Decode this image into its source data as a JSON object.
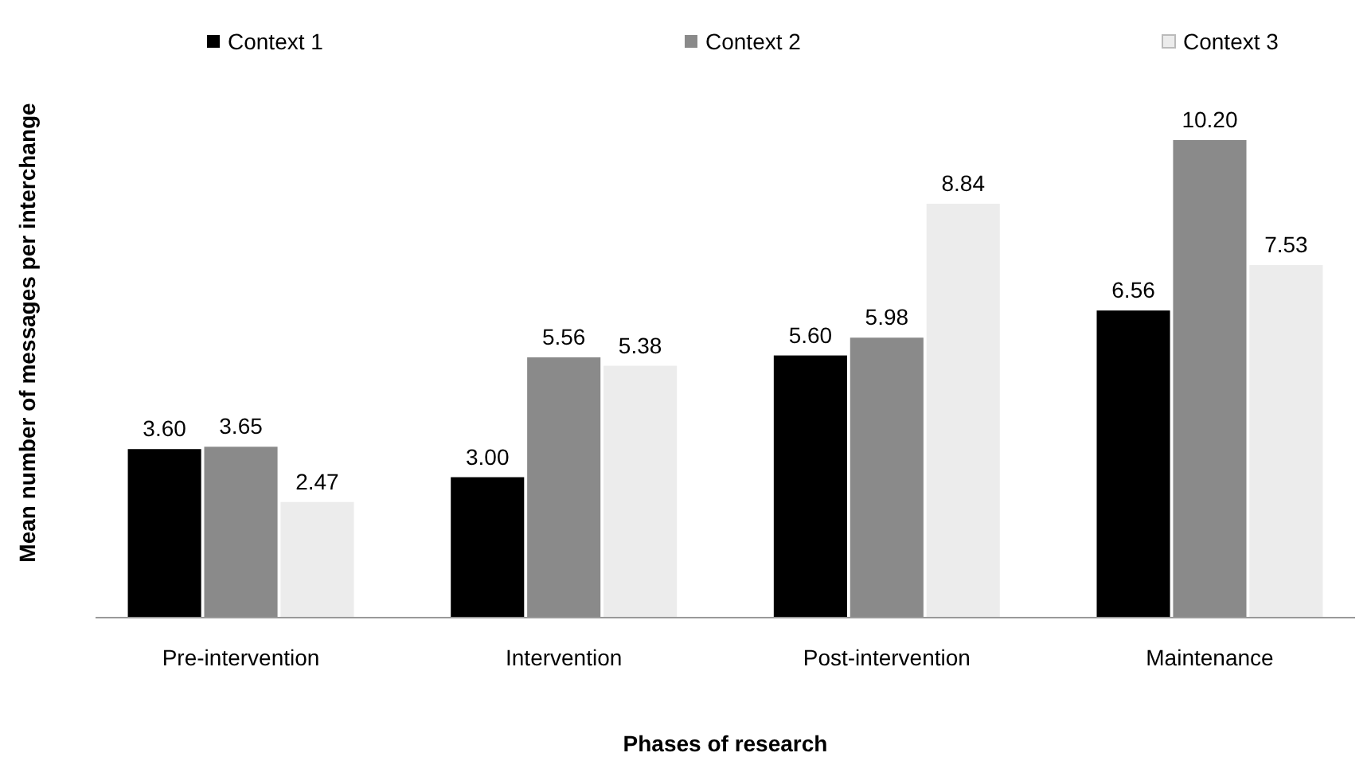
{
  "chart_data": {
    "type": "bar",
    "xlabel": "Phases of research",
    "ylabel": "Mean number of messages per interchange",
    "categories": [
      "Pre-intervention",
      "Intervention",
      "Post-intervention",
      "Maintenance"
    ],
    "series": [
      {
        "name": "Context 1",
        "color": "#000000",
        "values": [
          3.6,
          3.0,
          5.6,
          6.56
        ],
        "value_labels": [
          "3.60",
          "3.00",
          "5.60",
          "6.56"
        ]
      },
      {
        "name": "Context 2",
        "color": "#8a8a8a",
        "values": [
          3.65,
          5.56,
          5.98,
          10.2
        ],
        "value_labels": [
          "3.65",
          "5.56",
          "5.98",
          "10.20"
        ]
      },
      {
        "name": "Context 3",
        "color": "#ececec",
        "values": [
          2.47,
          5.38,
          8.84,
          7.53
        ],
        "value_labels": [
          "2.47",
          "5.38",
          "8.84",
          "7.53"
        ]
      }
    ],
    "legend": "top",
    "tick_labels": "x"
  }
}
